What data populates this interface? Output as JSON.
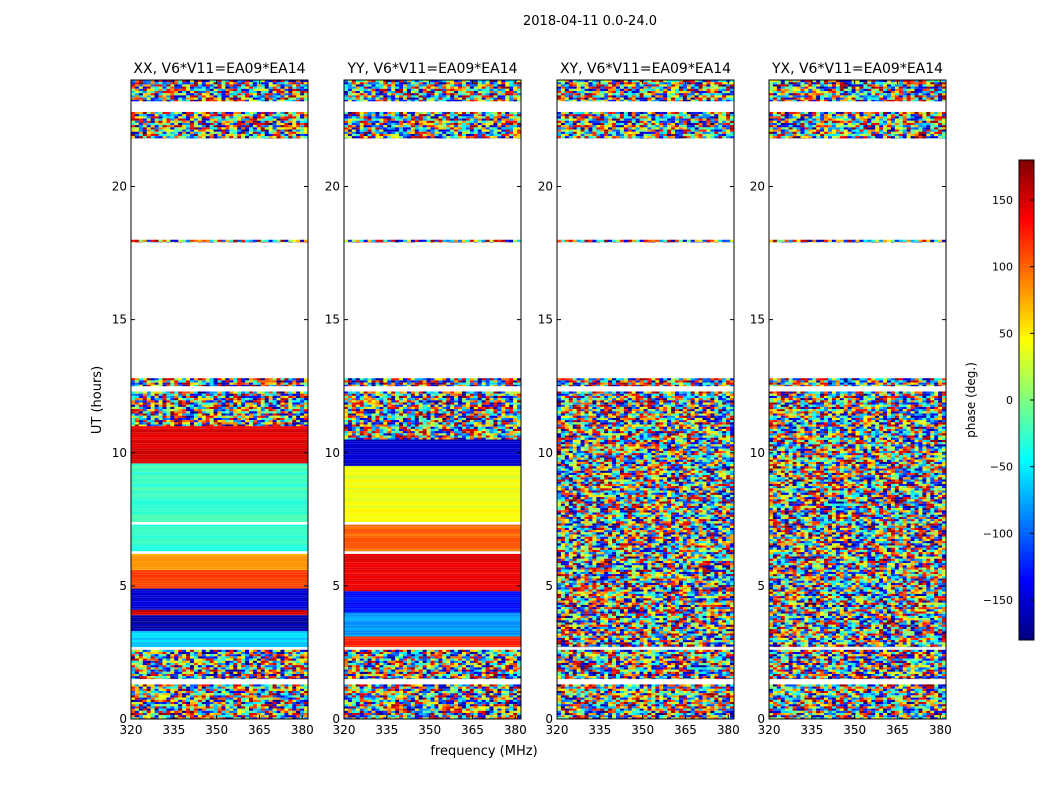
{
  "figure": {
    "suptitle": "2018-04-11 0.0-24.0",
    "ylabel": "UT (hours)",
    "xlabel": "frequency (MHz)"
  },
  "chart_data": [
    {
      "type": "heatmap",
      "title": "XX, V6*V11=EA09*EA14",
      "xlim": [
        320,
        382
      ],
      "ylim": [
        0,
        24
      ],
      "xticks": [
        320,
        335,
        350,
        365,
        380
      ],
      "yticks": [
        0,
        5,
        10,
        15,
        20
      ],
      "xtick_labels": [
        "320",
        "335",
        "350",
        "365",
        "380"
      ],
      "ytick_labels": [
        "0",
        "5",
        "10",
        "15",
        "20"
      ],
      "colormap": "jet",
      "bands": [
        {
          "y": [
            0,
            1.3
          ],
          "mode": "noise",
          "value": 0
        },
        {
          "y": [
            1.5,
            2.6
          ],
          "mode": "noise",
          "value": 0
        },
        {
          "y": [
            2.7,
            3.3
          ],
          "mode": "smooth",
          "value": -60
        },
        {
          "y": [
            3.3,
            3.9
          ],
          "mode": "smooth",
          "value": -165
        },
        {
          "y": [
            3.9,
            4.1
          ],
          "mode": "smooth",
          "value": 150
        },
        {
          "y": [
            4.1,
            4.9
          ],
          "mode": "smooth",
          "value": -150
        },
        {
          "y": [
            4.9,
            5.6
          ],
          "mode": "smooth",
          "value": 110
        },
        {
          "y": [
            5.6,
            6.2
          ],
          "mode": "smooth",
          "value": 80
        },
        {
          "y": [
            6.3,
            7.3
          ],
          "mode": "smooth",
          "value": -30
        },
        {
          "y": [
            7.4,
            9.6
          ],
          "mode": "smooth",
          "value": -25
        },
        {
          "y": [
            9.6,
            11.0
          ],
          "mode": "smooth",
          "value": 145
        },
        {
          "y": [
            11.0,
            12.3
          ],
          "mode": "noise",
          "value": 0
        },
        {
          "y": [
            12.5,
            12.8
          ],
          "mode": "noise",
          "value": 0
        },
        {
          "y": [
            17.9,
            18.0
          ],
          "mode": "noise",
          "value": 0
        },
        {
          "y": [
            21.8,
            22.8
          ],
          "mode": "noise",
          "value": 0
        },
        {
          "y": [
            23.2,
            24.0
          ],
          "mode": "noise",
          "value": 0
        }
      ]
    },
    {
      "type": "heatmap",
      "title": "YY, V6*V11=EA09*EA14",
      "xlim": [
        320,
        382
      ],
      "ylim": [
        0,
        24
      ],
      "xticks": [
        320,
        335,
        350,
        365,
        380
      ],
      "yticks": [
        0,
        5,
        10,
        15,
        20
      ],
      "xtick_labels": [
        "320",
        "335",
        "350",
        "365",
        "380"
      ],
      "ytick_labels": [
        "0",
        "5",
        "10",
        "15",
        "20"
      ],
      "colormap": "jet",
      "bands": [
        {
          "y": [
            0,
            1.3
          ],
          "mode": "noise",
          "value": 0
        },
        {
          "y": [
            1.5,
            2.6
          ],
          "mode": "noise",
          "value": 0
        },
        {
          "y": [
            2.7,
            3.1
          ],
          "mode": "smooth",
          "value": 120
        },
        {
          "y": [
            3.1,
            4.0
          ],
          "mode": "smooth",
          "value": -80
        },
        {
          "y": [
            4.0,
            4.8
          ],
          "mode": "smooth",
          "value": -130
        },
        {
          "y": [
            4.8,
            6.2
          ],
          "mode": "smooth",
          "value": 140
        },
        {
          "y": [
            6.3,
            7.3
          ],
          "mode": "smooth",
          "value": 100
        },
        {
          "y": [
            7.4,
            9.5
          ],
          "mode": "smooth",
          "value": 40
        },
        {
          "y": [
            9.5,
            10.5
          ],
          "mode": "smooth",
          "value": -150
        },
        {
          "y": [
            10.5,
            12.3
          ],
          "mode": "noise",
          "value": 0
        },
        {
          "y": [
            12.5,
            12.8
          ],
          "mode": "noise",
          "value": 0
        },
        {
          "y": [
            17.9,
            18.0
          ],
          "mode": "noise",
          "value": 0
        },
        {
          "y": [
            21.8,
            22.8
          ],
          "mode": "noise",
          "value": 0
        },
        {
          "y": [
            23.2,
            24.0
          ],
          "mode": "noise",
          "value": 0
        }
      ]
    },
    {
      "type": "heatmap",
      "title": "XY, V6*V11=EA09*EA14",
      "xlim": [
        320,
        382
      ],
      "ylim": [
        0,
        24
      ],
      "xticks": [
        320,
        335,
        350,
        365,
        380
      ],
      "yticks": [
        0,
        5,
        10,
        15,
        20
      ],
      "xtick_labels": [
        "320",
        "335",
        "350",
        "365",
        "380"
      ],
      "ytick_labels": [
        "0",
        "5",
        "10",
        "15",
        "20"
      ],
      "colormap": "jet",
      "bands": [
        {
          "y": [
            0,
            1.3
          ],
          "mode": "noise",
          "value": 0
        },
        {
          "y": [
            1.5,
            2.6
          ],
          "mode": "noise",
          "value": 0
        },
        {
          "y": [
            2.7,
            12.3
          ],
          "mode": "noise",
          "value": 0
        },
        {
          "y": [
            12.5,
            12.8
          ],
          "mode": "noise",
          "value": 0
        },
        {
          "y": [
            17.9,
            18.0
          ],
          "mode": "noise",
          "value": 0
        },
        {
          "y": [
            21.8,
            22.8
          ],
          "mode": "noise",
          "value": 0
        },
        {
          "y": [
            23.2,
            24.0
          ],
          "mode": "noise",
          "value": 0
        }
      ]
    },
    {
      "type": "heatmap",
      "title": "YX, V6*V11=EA09*EA14",
      "xlim": [
        320,
        382
      ],
      "ylim": [
        0,
        24
      ],
      "xticks": [
        320,
        335,
        350,
        365,
        380
      ],
      "yticks": [
        0,
        5,
        10,
        15,
        20
      ],
      "xtick_labels": [
        "320",
        "335",
        "350",
        "365",
        "380"
      ],
      "ytick_labels": [
        "0",
        "5",
        "10",
        "15",
        "20"
      ],
      "colormap": "jet",
      "bands": [
        {
          "y": [
            0,
            1.3
          ],
          "mode": "noise",
          "value": 0
        },
        {
          "y": [
            1.5,
            2.6
          ],
          "mode": "noise",
          "value": 0
        },
        {
          "y": [
            2.7,
            12.3
          ],
          "mode": "noise",
          "value": 0
        },
        {
          "y": [
            12.5,
            12.8
          ],
          "mode": "noise",
          "value": 0
        },
        {
          "y": [
            17.9,
            18.0
          ],
          "mode": "noise",
          "value": 0
        },
        {
          "y": [
            21.8,
            22.8
          ],
          "mode": "noise",
          "value": 0
        },
        {
          "y": [
            23.2,
            24.0
          ],
          "mode": "noise",
          "value": 0
        }
      ]
    }
  ],
  "colorbar": {
    "label": "phase (deg.)",
    "range": [
      -180,
      180
    ],
    "ticks": [
      150,
      100,
      50,
      0,
      -50,
      -100,
      -150
    ],
    "tick_labels": [
      "150",
      "100",
      "50",
      "0",
      "−50",
      "−100",
      "−150"
    ],
    "colormap": "jet"
  }
}
